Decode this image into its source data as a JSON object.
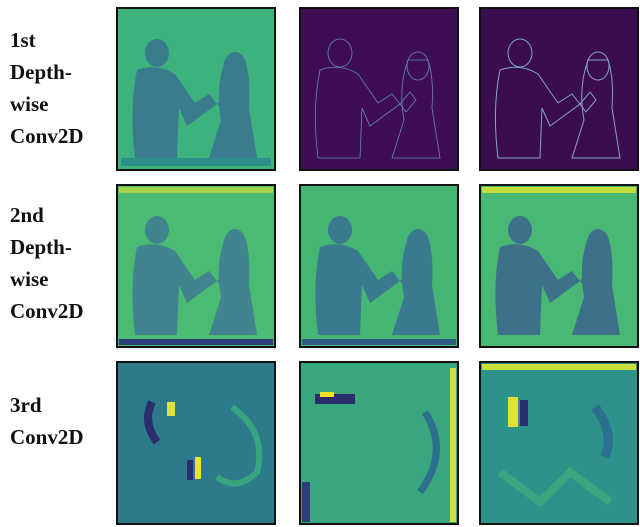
{
  "rows": [
    {
      "label_lines": [
        "1st",
        "Depth-",
        "wise",
        "Conv2D"
      ]
    },
    {
      "label_lines": [
        "2nd",
        "Depth-",
        "wise",
        "Conv2D"
      ]
    },
    {
      "label_lines": [
        "3rd",
        "Conv2D"
      ]
    }
  ]
}
